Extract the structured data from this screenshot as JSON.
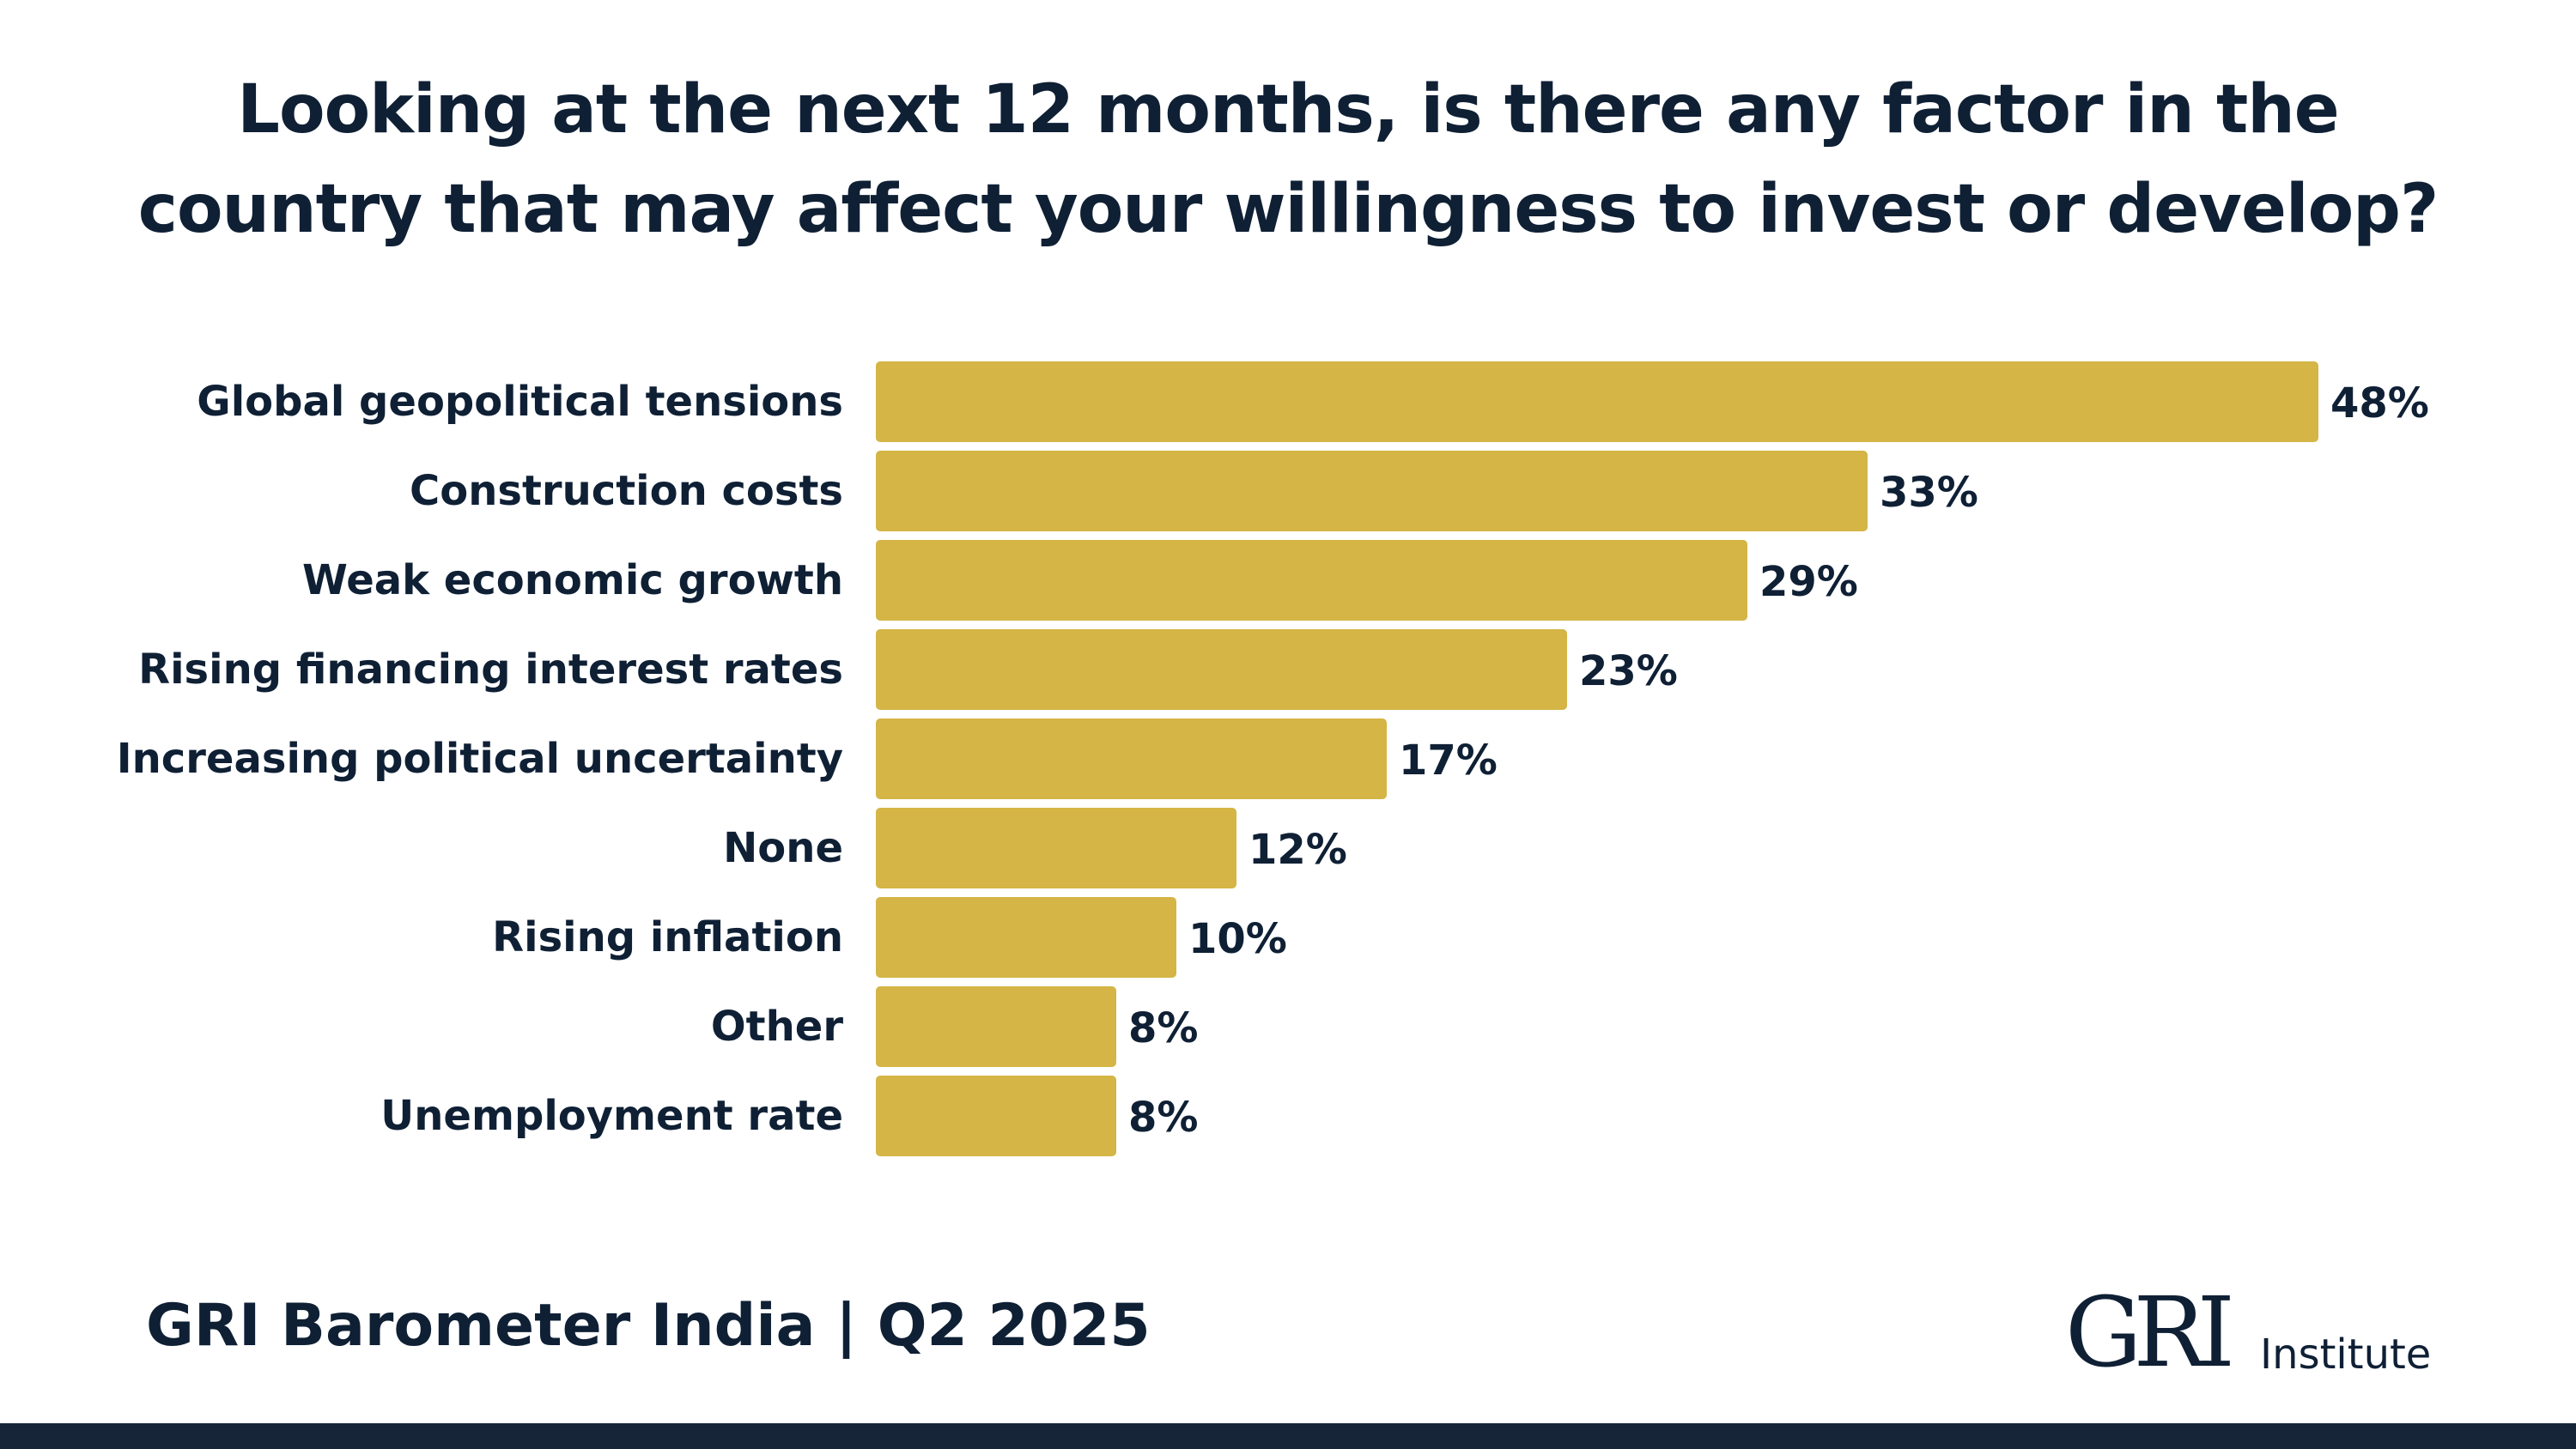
{
  "title": {
    "line1": "Looking at the next 12 months, is there any factor in the",
    "line2": "country that may affect your willingness to invest or develop?"
  },
  "footer": {
    "caption": "GRI Barometer India | Q2 2025",
    "logo_mark": "GRI",
    "logo_text": "Institute"
  },
  "colors": {
    "bar": "#d4b545",
    "text": "#0f2035",
    "bottom_bar": "#162638"
  },
  "chart_data": {
    "type": "bar",
    "orientation": "horizontal",
    "title": "Looking at the next 12 months, is there any factor in the country that may affect your willingness to invest or develop?",
    "categories": [
      "Global geopolitical tensions",
      "Construction costs",
      "Weak economic growth",
      "Rising financing interest rates",
      "Increasing political uncertainty",
      "None",
      "Rising inflation",
      "Other",
      "Unemployment rate"
    ],
    "values": [
      48,
      33,
      29,
      23,
      17,
      12,
      10,
      8,
      8
    ],
    "value_labels": [
      "48%",
      "33%",
      "29%",
      "23%",
      "17%",
      "12%",
      "10%",
      "8%",
      "8%"
    ],
    "unit": "%",
    "xlabel": "",
    "ylabel": "",
    "grid": false,
    "legend": "none"
  }
}
